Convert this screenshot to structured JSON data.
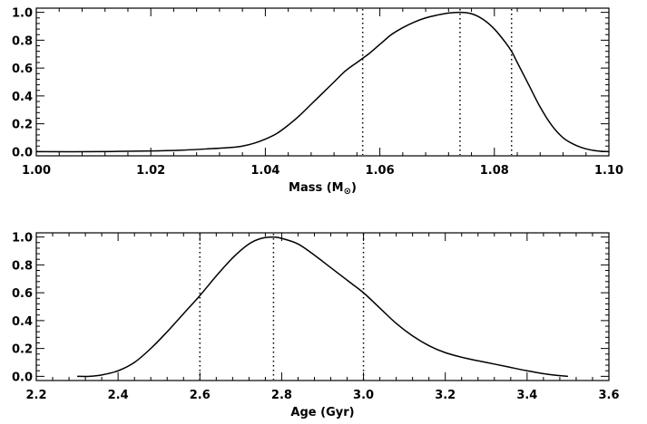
{
  "chart_data": [
    {
      "type": "line",
      "xlabel": "Mass (M",
      "xlabel_sub": "⊙",
      "xlabel_end": ")",
      "xlim": [
        1.0,
        1.1
      ],
      "ylim": [
        -0.03,
        1.03
      ],
      "xticks": [
        1.0,
        1.02,
        1.04,
        1.06,
        1.08,
        1.1
      ],
      "xtick_labels": [
        "1.00",
        "1.02",
        "1.04",
        "1.06",
        "1.08",
        "1.10"
      ],
      "xminor": 4,
      "yticks": [
        0.0,
        0.2,
        0.4,
        0.6,
        0.8,
        1.0
      ],
      "ytick_labels": [
        "0.0",
        "0.2",
        "0.4",
        "0.6",
        "0.8",
        "1.0"
      ],
      "yminor": 4,
      "vlines": [
        1.057,
        1.074,
        1.083
      ],
      "x": [
        1.0,
        1.01,
        1.02,
        1.025,
        1.03,
        1.034,
        1.036,
        1.038,
        1.04,
        1.042,
        1.044,
        1.046,
        1.048,
        1.05,
        1.052,
        1.054,
        1.056,
        1.057,
        1.058,
        1.06,
        1.062,
        1.064,
        1.066,
        1.068,
        1.07,
        1.072,
        1.074,
        1.076,
        1.078,
        1.08,
        1.082,
        1.083,
        1.084,
        1.086,
        1.088,
        1.09,
        1.092,
        1.094,
        1.096,
        1.098,
        1.1
      ],
      "y": [
        0.0,
        0.0,
        0.005,
        0.01,
        0.02,
        0.03,
        0.04,
        0.06,
        0.09,
        0.13,
        0.19,
        0.26,
        0.34,
        0.42,
        0.5,
        0.58,
        0.64,
        0.67,
        0.7,
        0.77,
        0.84,
        0.89,
        0.93,
        0.96,
        0.98,
        0.995,
        1.0,
        0.99,
        0.95,
        0.88,
        0.78,
        0.72,
        0.64,
        0.48,
        0.32,
        0.19,
        0.1,
        0.05,
        0.02,
        0.005,
        0.0
      ]
    },
    {
      "type": "line",
      "xlabel": "Age (Gyr)",
      "xlim": [
        2.2,
        3.6
      ],
      "ylim": [
        -0.03,
        1.03
      ],
      "xticks": [
        2.2,
        2.4,
        2.6,
        2.8,
        3.0,
        3.2,
        3.4,
        3.6
      ],
      "xtick_labels": [
        "2.2",
        "2.4",
        "2.6",
        "2.8",
        "3.0",
        "3.2",
        "3.4",
        "3.6"
      ],
      "xminor": 4,
      "yticks": [
        0.0,
        0.2,
        0.4,
        0.6,
        0.8,
        1.0
      ],
      "ytick_labels": [
        "0.0",
        "0.2",
        "0.4",
        "0.6",
        "0.8",
        "1.0"
      ],
      "yminor": 4,
      "vlines": [
        2.6,
        2.78,
        3.0
      ],
      "x": [
        2.3,
        2.33,
        2.36,
        2.4,
        2.44,
        2.48,
        2.52,
        2.56,
        2.6,
        2.64,
        2.68,
        2.72,
        2.75,
        2.78,
        2.8,
        2.84,
        2.88,
        2.92,
        2.96,
        3.0,
        3.04,
        3.08,
        3.12,
        3.16,
        3.2,
        3.25,
        3.3,
        3.35,
        3.4,
        3.45,
        3.5
      ],
      "y": [
        0.0,
        0.0,
        0.01,
        0.04,
        0.1,
        0.2,
        0.32,
        0.45,
        0.58,
        0.72,
        0.85,
        0.95,
        0.99,
        1.0,
        0.99,
        0.95,
        0.87,
        0.78,
        0.69,
        0.6,
        0.49,
        0.38,
        0.29,
        0.22,
        0.17,
        0.13,
        0.1,
        0.07,
        0.04,
        0.015,
        0.0
      ]
    }
  ]
}
